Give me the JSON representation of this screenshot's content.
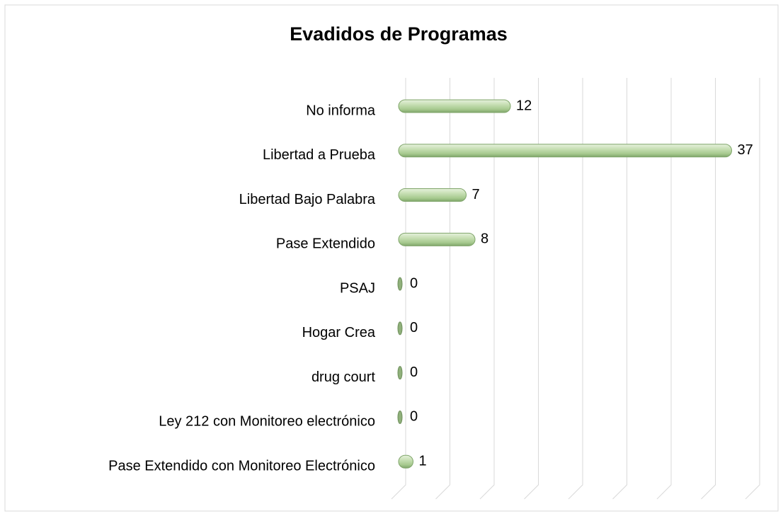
{
  "chart_data": {
    "type": "barh",
    "title": "Evadidos de Programas",
    "categories": [
      "No informa",
      "Libertad a Prueba",
      "Libertad Bajo Palabra",
      "Pase Extendido",
      "PSAJ",
      "Hogar Crea",
      "drug court",
      "Ley 212 con Monitoreo electrónico",
      "Pase Extendido con Monitoreo Electrónico"
    ],
    "values": [
      12,
      37,
      7,
      8,
      0,
      0,
      0,
      0,
      1
    ],
    "color": "#b5d3a0",
    "xlim": [
      0,
      40
    ],
    "xticks": [
      0,
      5,
      10,
      15,
      20,
      25,
      30,
      35,
      40
    ],
    "grid": true
  }
}
